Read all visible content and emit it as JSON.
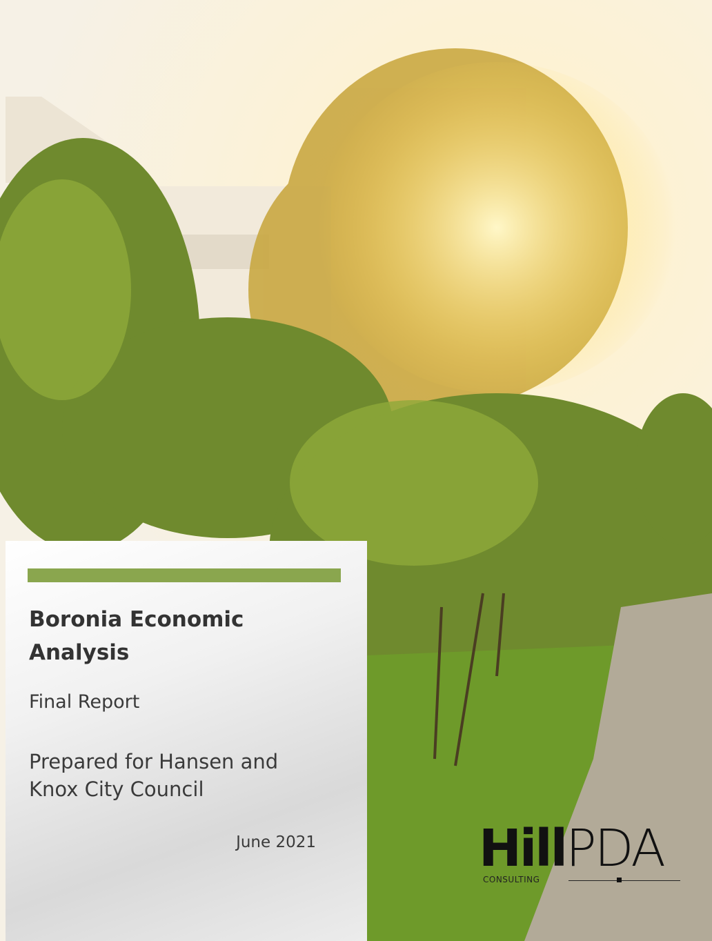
{
  "cover": {
    "title": "Boronia Economic Analysis",
    "subtitle": "Final Report",
    "prepared_for": "Prepared for Hansen and Knox City Council",
    "date": "June 2021",
    "logo": {
      "bold": "Hill",
      "light": "PDA",
      "tagline": "CONSULTING"
    }
  }
}
